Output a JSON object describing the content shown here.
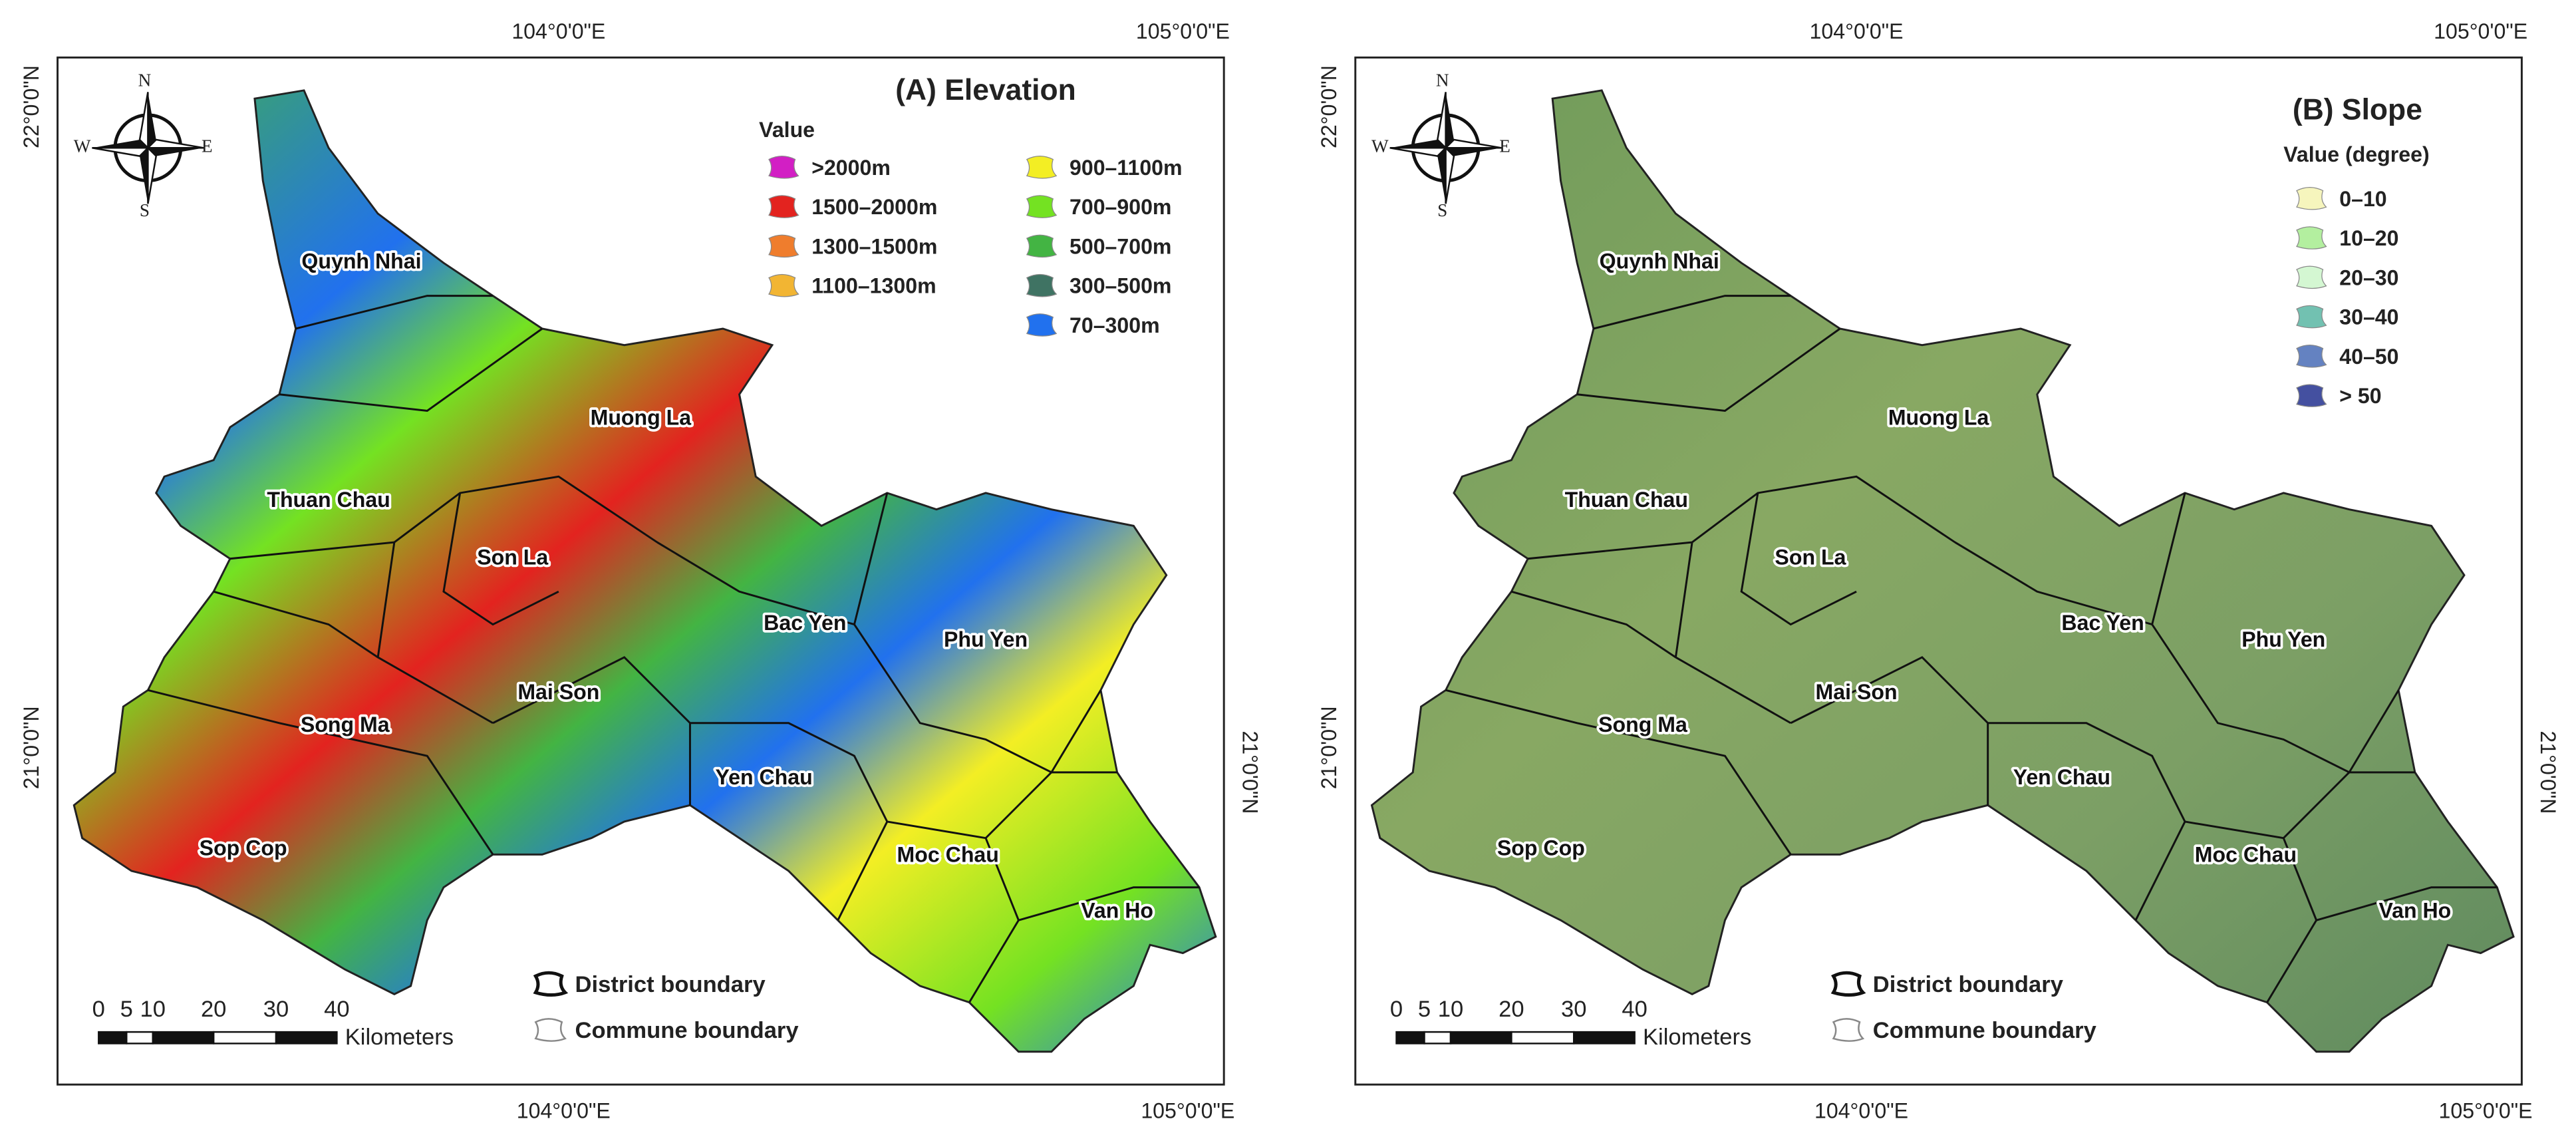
{
  "panels": [
    {
      "title": "(A) Elevation",
      "legend": {
        "title": "Value",
        "items": [
          {
            "label": ">2000m",
            "color": "#d21fc4"
          },
          {
            "label": "1500–2000m",
            "color": "#e3231f"
          },
          {
            "label": "1300–1500m",
            "color": "#ef7d2d"
          },
          {
            "label": "1100–1300m",
            "color": "#f2b533"
          },
          {
            "label": "900–1100m",
            "color": "#f3ee24"
          },
          {
            "label": "700–900m",
            "color": "#74e222"
          },
          {
            "label": "500–700m",
            "color": "#43b443"
          },
          {
            "label": "300–500m",
            "color": "#3f7363"
          },
          {
            "label": "70–300m",
            "color": "#2171ee"
          }
        ]
      },
      "top_ticks": [
        "104°0'0\"E",
        "105°0'0\"E"
      ],
      "bottom_ticks": [
        "104°0'0\"E",
        "105°0'0\"E"
      ],
      "left_ticks": [
        "22°0'0\"N",
        "21°0'0\"N"
      ],
      "right_ticks": [
        "21°0'0\"N"
      ],
      "districts": [
        "Quynh Nhai",
        "Muong La",
        "Thuan Chau",
        "Son La",
        "Bac Yen",
        "Phu Yen",
        "Mai Son",
        "Song Ma",
        "Yen Chau",
        "Moc Chau",
        "Sop Cop",
        "Van Ho"
      ],
      "scale_bar": {
        "labels": [
          0,
          5,
          10,
          20,
          30,
          40
        ],
        "unit": "Kilometers"
      },
      "boundary_legend": [
        "District boundary",
        "Commune boundary"
      ],
      "compass": [
        "N",
        "S",
        "W",
        "E"
      ]
    },
    {
      "title": "(B) Slope",
      "legend": {
        "title": "Value (degree)",
        "items": [
          {
            "label": "0–10",
            "color": "#f6f5bd"
          },
          {
            "label": "10–20",
            "color": "#b3ef9f"
          },
          {
            "label": "20–30",
            "color": "#d4f7d2"
          },
          {
            "label": "30–40",
            "color": "#72c1b1"
          },
          {
            "label": "40–50",
            "color": "#6482c1"
          },
          {
            "label": "> 50",
            "color": "#4450a0"
          }
        ]
      },
      "top_ticks": [
        "104°0'0\"E",
        "105°0'0\"E"
      ],
      "bottom_ticks": [
        "104°0'0\"E",
        "105°0'0\"E"
      ],
      "left_ticks": [
        "22°0'0\"N",
        "21°0'0\"N"
      ],
      "right_ticks": [
        "21°0'0\"N"
      ],
      "districts": [
        "Quynh Nhai",
        "Muong La",
        "Thuan Chau",
        "Son La",
        "Bac Yen",
        "Phu Yen",
        "Mai Son",
        "Song Ma",
        "Yen Chau",
        "Moc Chau",
        "Sop Cop",
        "Van Ho"
      ],
      "scale_bar": {
        "labels": [
          0,
          5,
          10,
          20,
          30,
          40
        ],
        "unit": "Kilometers"
      },
      "boundary_legend": [
        "District boundary",
        "Commune boundary"
      ],
      "compass": [
        "N",
        "S",
        "W",
        "E"
      ]
    }
  ]
}
